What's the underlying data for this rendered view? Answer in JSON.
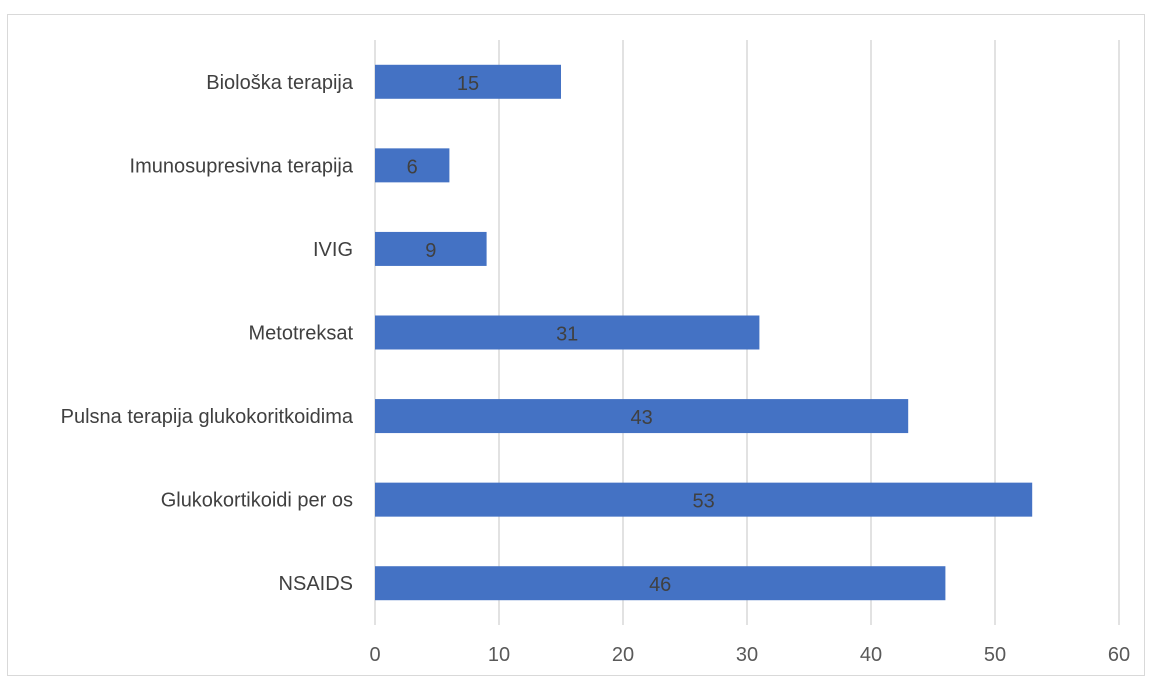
{
  "chart_data": {
    "type": "bar",
    "orientation": "horizontal",
    "categories": [
      "NSAIDS",
      "Glukokortikoidi per os",
      "Pulsna terapija glukokoritkoidima",
      "Metotreksat",
      "IVIG",
      "Imunosupresivna terapija",
      "Biološka terapija"
    ],
    "values": [
      46,
      53,
      43,
      31,
      9,
      6,
      15
    ],
    "xlim": [
      0,
      60
    ],
    "xticks": [
      0,
      10,
      20,
      30,
      40,
      50,
      60
    ],
    "grid": true,
    "bar_color": "#4472c4",
    "data_labels": true,
    "title": "",
    "xlabel": "",
    "ylabel": ""
  }
}
